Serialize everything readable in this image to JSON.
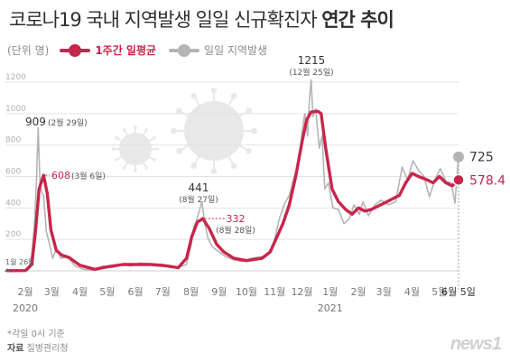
{
  "title": {
    "text": "코로나19 국내 지역발생 일일 신규확진자",
    "bold": "연간 추이"
  },
  "legend": {
    "unit": "(단위 명)",
    "avg_label": "1주간 일평균",
    "local_label": "일일 지역발생"
  },
  "colors": {
    "avg": "#c8254a",
    "local": "#b4b4b4",
    "grid": "#e2e2e2",
    "virus": "#e8e8e8"
  },
  "chart_data": {
    "type": "line",
    "ylim": [
      0,
      1200
    ],
    "y_ticks": [
      "1200",
      "1000",
      "800",
      "600",
      "400",
      "200"
    ],
    "x_ticks": [
      {
        "label": "2월",
        "year": "2020"
      },
      {
        "label": "3월"
      },
      {
        "label": "4월"
      },
      {
        "label": "5월"
      },
      {
        "label": "6월"
      },
      {
        "label": "7월"
      },
      {
        "label": "8월"
      },
      {
        "label": "9월"
      },
      {
        "label": "10월"
      },
      {
        "label": "11월"
      },
      {
        "label": "12월"
      },
      {
        "label": "1월",
        "year": "2021"
      },
      {
        "label": "2월"
      },
      {
        "label": "3월"
      },
      {
        "label": "4월"
      },
      {
        "label": "5월"
      },
      {
        "label": "6월 5일"
      }
    ],
    "series": [
      {
        "name": "1주간 일평균",
        "x": [
          "2020-01-26",
          "2020-02-15",
          "2020-02-22",
          "2020-02-26",
          "2020-03-01",
          "2020-03-06",
          "2020-03-10",
          "2020-03-14",
          "2020-03-20",
          "2020-03-26",
          "2020-04-03",
          "2020-04-15",
          "2020-05-01",
          "2020-05-15",
          "2020-06-01",
          "2020-06-15",
          "2020-07-01",
          "2020-07-15",
          "2020-08-01",
          "2020-08-10",
          "2020-08-16",
          "2020-08-22",
          "2020-08-28",
          "2020-09-04",
          "2020-09-12",
          "2020-09-20",
          "2020-10-01",
          "2020-10-15",
          "2020-11-01",
          "2020-11-10",
          "2020-11-17",
          "2020-11-24",
          "2020-12-01",
          "2020-12-08",
          "2020-12-15",
          "2020-12-20",
          "2020-12-25",
          "2021-01-01",
          "2021-01-05",
          "2021-01-10",
          "2021-01-17",
          "2021-01-24",
          "2021-02-01",
          "2021-02-08",
          "2021-02-15",
          "2021-02-22",
          "2021-03-01",
          "2021-03-15",
          "2021-04-01",
          "2021-04-08",
          "2021-04-15",
          "2021-04-22",
          "2021-05-01",
          "2021-05-08",
          "2021-05-15",
          "2021-05-22",
          "2021-05-29",
          "2021-06-05"
        ],
        "y": [
          1,
          2,
          40,
          250,
          520,
          608,
          490,
          260,
          130,
          100,
          85,
          35,
          10,
          25,
          40,
          40,
          40,
          35,
          20,
          80,
          220,
          310,
          332,
          270,
          170,
          120,
          80,
          65,
          80,
          120,
          210,
          300,
          420,
          600,
          820,
          960,
          1010,
          1015,
          1000,
          780,
          520,
          440,
          390,
          360,
          400,
          380,
          390,
          430,
          480,
          560,
          620,
          600,
          580,
          560,
          600,
          560,
          540,
          578
        ]
      },
      {
        "name": "일일 지역발생",
        "x": [
          "2020-01-26",
          "2020-02-18",
          "2020-02-22",
          "2020-02-25",
          "2020-02-27",
          "2020-02-29",
          "2020-03-02",
          "2020-03-04",
          "2020-03-06",
          "2020-03-09",
          "2020-03-12",
          "2020-03-16",
          "2020-03-20",
          "2020-03-25",
          "2020-04-01",
          "2020-04-10",
          "2020-04-20",
          "2020-05-01",
          "2020-05-10",
          "2020-05-20",
          "2020-06-01",
          "2020-06-10",
          "2020-06-20",
          "2020-07-01",
          "2020-07-10",
          "2020-07-20",
          "2020-08-01",
          "2020-08-10",
          "2020-08-15",
          "2020-08-18",
          "2020-08-21",
          "2020-08-24",
          "2020-08-27",
          "2020-08-30",
          "2020-09-03",
          "2020-09-08",
          "2020-09-15",
          "2020-09-22",
          "2020-10-01",
          "2020-10-10",
          "2020-10-20",
          "2020-11-01",
          "2020-11-08",
          "2020-11-14",
          "2020-11-20",
          "2020-11-26",
          "2020-12-01",
          "2020-12-06",
          "2020-12-11",
          "2020-12-15",
          "2020-12-18",
          "2020-12-21",
          "2020-12-23",
          "2020-12-25",
          "2020-12-27",
          "2020-12-30",
          "2021-01-03",
          "2021-01-06",
          "2021-01-09",
          "2021-01-13",
          "2021-01-18",
          "2021-01-24",
          "2021-01-30",
          "2021-02-05",
          "2021-02-10",
          "2021-02-16",
          "2021-02-20",
          "2021-02-26",
          "2021-03-05",
          "2021-03-12",
          "2021-03-20",
          "2021-03-28",
          "2021-04-04",
          "2021-04-10",
          "2021-04-16",
          "2021-04-22",
          "2021-04-28",
          "2021-05-04",
          "2021-05-10",
          "2021-05-16",
          "2021-05-22",
          "2021-05-28",
          "2021-06-01",
          "2021-06-05"
        ],
        "y": [
          1,
          2,
          100,
          300,
          560,
          909,
          560,
          500,
          480,
          250,
          180,
          80,
          140,
          80,
          90,
          30,
          8,
          6,
          30,
          20,
          40,
          30,
          50,
          45,
          30,
          25,
          20,
          40,
          160,
          280,
          320,
          380,
          441,
          300,
          200,
          150,
          120,
          90,
          70,
          60,
          80,
          90,
          110,
          180,
          330,
          430,
          480,
          590,
          680,
          880,
          1000,
          860,
          1080,
          1215,
          980,
          1030,
          780,
          860,
          520,
          560,
          400,
          390,
          300,
          330,
          420,
          360,
          440,
          350,
          420,
          450,
          420,
          440,
          660,
          580,
          700,
          640,
          600,
          470,
          580,
          650,
          570,
          560,
          430,
          725
        ]
      }
    ],
    "annotations": [
      {
        "value": "909",
        "note": "(2월 29일)"
      },
      {
        "value": "608",
        "note": "(3월 6일)"
      },
      {
        "value": "441",
        "note": "(8월 27일)"
      },
      {
        "value": "332",
        "note": "(8월 28일)"
      },
      {
        "value": "1215",
        "note": "(12월 25일)"
      },
      {
        "value": "725",
        "note": ""
      },
      {
        "value": "578.4",
        "note": ""
      }
    ],
    "start_label": "1월 26일",
    "xlabel": "",
    "ylabel": ""
  },
  "note": "*각일 0시 기준",
  "source": {
    "label": "자료",
    "value": "질병관리청"
  },
  "logo": "news1"
}
